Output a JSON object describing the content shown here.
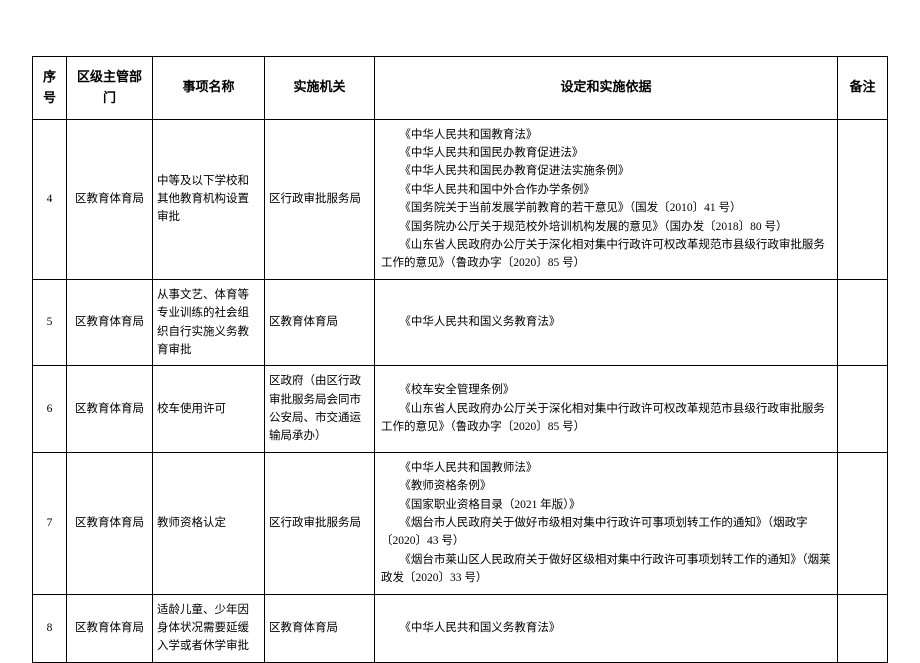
{
  "columns": [
    "序号",
    "区级主管部门",
    "事项名称",
    "实施机关",
    "设定和实施依据",
    "备注"
  ],
  "rows": [
    {
      "seq": "4",
      "dept": "区教育体育局",
      "item": "中等及以下学校和其他教育机构设置审批",
      "org": "区行政审批服务局",
      "basis": [
        "《中华人民共和国教育法》",
        "《中华人民共和国民办教育促进法》",
        "《中华人民共和国民办教育促进法实施条例》",
        "《中华人民共和国中外合作办学条例》",
        "《国务院关于当前发展学前教育的若干意见》（国发〔2010〕41 号）",
        "《国务院办公厅关于规范校外培训机构发展的意见》（国办发〔2018〕80 号）",
        "《山东省人民政府办公厅关于深化相对集中行政许可权改革规范市县级行政审批服务工作的意见》（鲁政办字〔2020〕85 号）"
      ],
      "note": ""
    },
    {
      "seq": "5",
      "dept": "区教育体育局",
      "item": "从事文艺、体育等专业训练的社会组织自行实施义务教育审批",
      "org": "区教育体育局",
      "basis": [
        "《中华人民共和国义务教育法》"
      ],
      "note": ""
    },
    {
      "seq": "6",
      "dept": "区教育体育局",
      "item": "校车使用许可",
      "org": "区政府（由区行政审批服务局会同市公安局、市交通运输局承办）",
      "basis": [
        "《校车安全管理条例》",
        "《山东省人民政府办公厅关于深化相对集中行政许可权改革规范市县级行政审批服务工作的意见》（鲁政办字〔2020〕85 号）"
      ],
      "note": ""
    },
    {
      "seq": "7",
      "dept": "区教育体育局",
      "item": "教师资格认定",
      "org": "区行政审批服务局",
      "basis": [
        "《中华人民共和国教师法》",
        "《教师资格条例》",
        "《国家职业资格目录（2021 年版）》",
        "《烟台市人民政府关于做好市级相对集中行政许可事项划转工作的通知》（烟政字〔2020〕43 号）",
        "《烟台市莱山区人民政府关于做好区级相对集中行政许可事项划转工作的通知》（烟莱政发〔2020〕33 号）"
      ],
      "note": ""
    },
    {
      "seq": "8",
      "dept": "区教育体育局",
      "item": "适龄儿童、少年因身体状况需要延缓入学或者休学审批",
      "org": "区教育体育局",
      "basis": [
        "《中华人民共和国义务教育法》"
      ],
      "note": ""
    }
  ]
}
